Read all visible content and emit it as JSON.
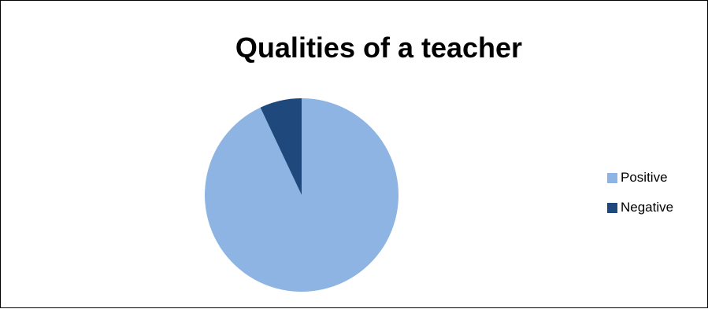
{
  "chart_data": {
    "type": "pie",
    "title": "Qualities of a teacher",
    "categories": [
      "Positive",
      "Negative"
    ],
    "values": [
      93,
      7
    ],
    "colors": [
      "#8EB4E3",
      "#1F497D"
    ],
    "legend_position": "right"
  }
}
